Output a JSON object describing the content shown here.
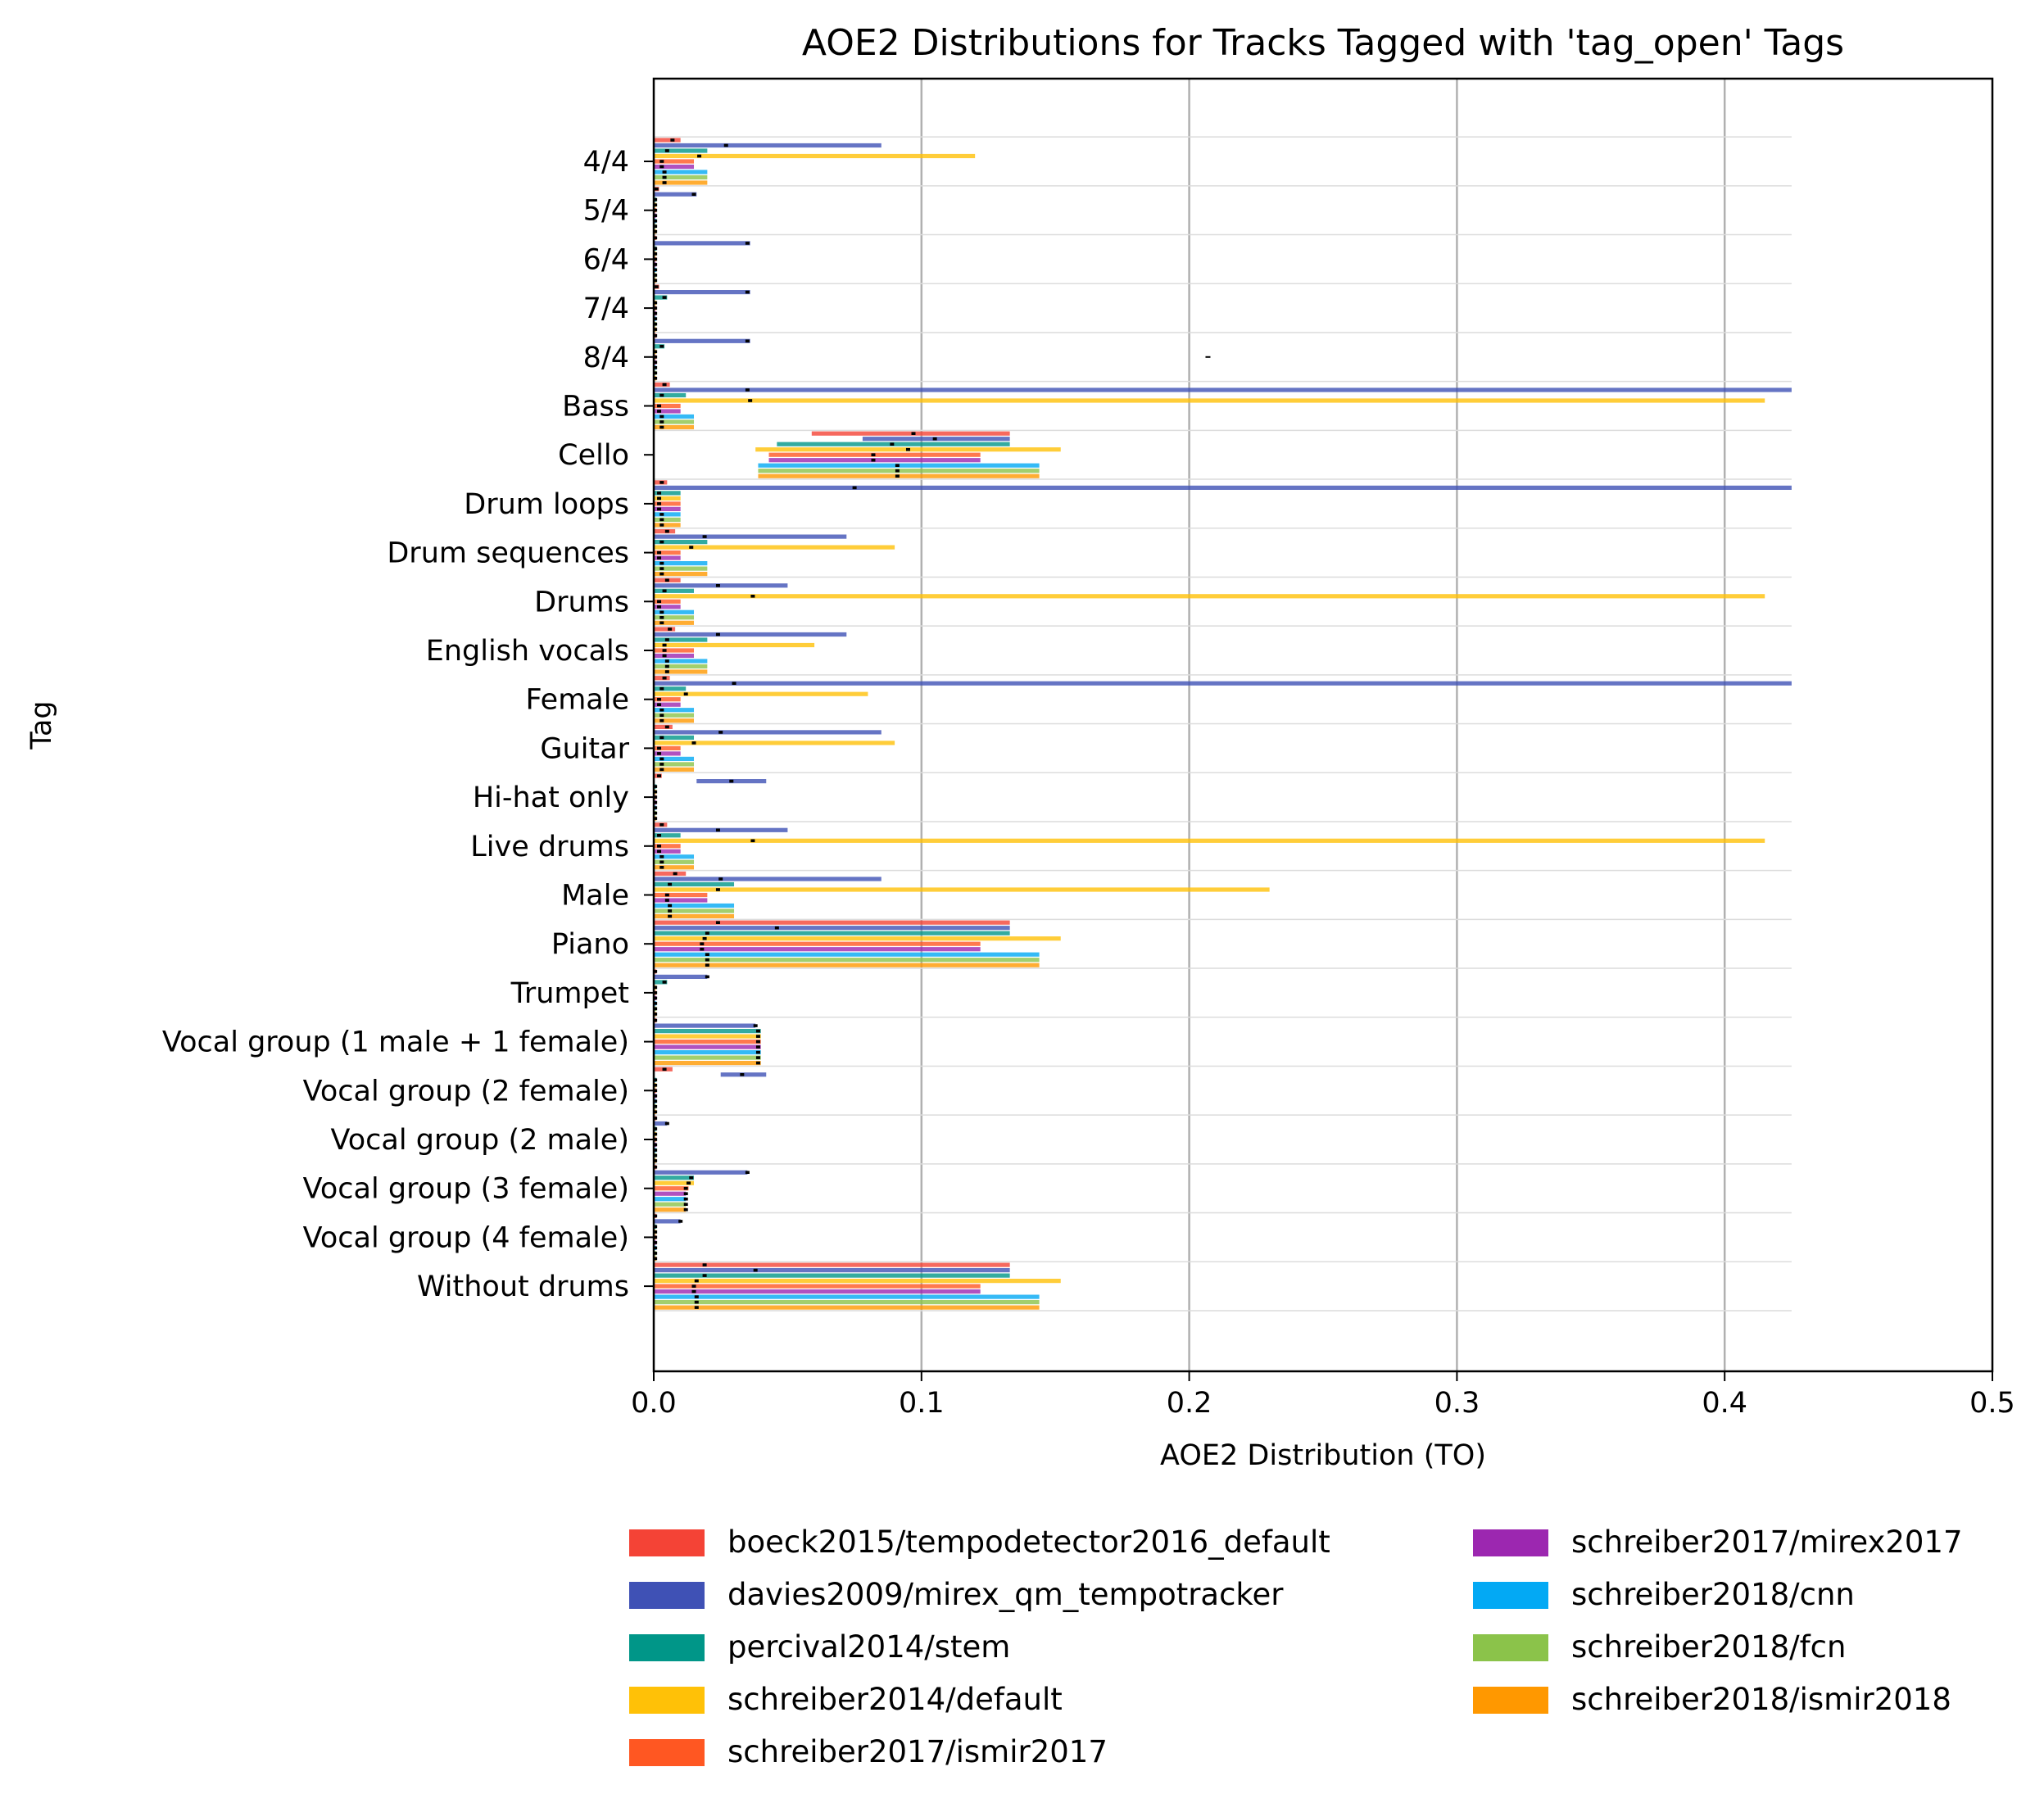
{
  "chart_data": {
    "type": "violin",
    "orientation": "horizontal",
    "title": "AOE2 Distributions for Tracks Tagged with 'tag_open' Tags",
    "xlabel": "AOE2 Distribution (TO)",
    "ylabel": "Tag",
    "xlim": [
      0.0,
      0.5
    ],
    "xticks": [
      "0.0",
      "0.1",
      "0.2",
      "0.3",
      "0.4",
      "0.5"
    ],
    "grid": "vertical",
    "legend_position": "bottom",
    "categories": [
      "4/4",
      "5/4",
      "6/4",
      "7/4",
      "8/4",
      "Bass",
      "Cello",
      "Drum loops",
      "Drum sequences",
      "Drums",
      "English vocals",
      "Female",
      "Guitar",
      "Hi-hat only",
      "Live drums",
      "Male",
      "Piano",
      "Trumpet",
      "Vocal group (1 male + 1 female)",
      "Vocal group (2 female)",
      "Vocal group (2 male)",
      "Vocal group (3 female)",
      "Vocal group (4 female)",
      "Without drums"
    ],
    "series": [
      {
        "name": "boeck2015/tempodetector2016_default",
        "color": "#f44336",
        "min": [
          0,
          0,
          0,
          0,
          0,
          0,
          0.059,
          0,
          0,
          0,
          0,
          0,
          0,
          0,
          0,
          0,
          0,
          0,
          0,
          0,
          0,
          0,
          0,
          0
        ],
        "max": [
          0.01,
          0.002,
          0.001,
          0.002,
          0.001,
          0.006,
          0.133,
          0.005,
          0.008,
          0.01,
          0.008,
          0.006,
          0.007,
          0.003,
          0.005,
          0.012,
          0.133,
          0.001,
          0.001,
          0.007,
          0.001,
          0.001,
          0.001,
          0.133
        ],
        "median": [
          0.007,
          0.001,
          0.0005,
          0.001,
          0.0005,
          0.004,
          0.097,
          0.003,
          0.005,
          0.005,
          0.006,
          0.004,
          0.005,
          0.002,
          0.003,
          0.008,
          0.024,
          0.0005,
          0.0005,
          0.004,
          0.0005,
          0.0005,
          0.0005,
          0.019
        ]
      },
      {
        "name": "davies2009/mirex_qm_tempotracker",
        "color": "#3f51b5",
        "min": [
          0,
          0,
          0,
          0,
          0,
          0,
          0.078,
          0,
          0,
          0,
          0,
          0,
          0,
          0.016,
          0,
          0,
          0,
          0,
          0,
          0.025,
          0,
          0,
          0,
          0
        ],
        "max": [
          0.085,
          0.016,
          0.036,
          0.036,
          0.036,
          0.425,
          0.133,
          0.425,
          0.072,
          0.05,
          0.072,
          0.425,
          0.085,
          0.042,
          0.05,
          0.085,
          0.133,
          0.02,
          0.038,
          0.042,
          0.005,
          0.035,
          0.01,
          0.133
        ],
        "median": [
          0.027,
          0.015,
          0.035,
          0.035,
          0.035,
          0.035,
          0.105,
          0.075,
          0.019,
          0.024,
          0.024,
          0.03,
          0.025,
          0.029,
          0.024,
          0.025,
          0.046,
          0.02,
          0.038,
          0.033,
          0.005,
          0.035,
          0.01,
          0.038
        ]
      },
      {
        "name": "percival2014/stem",
        "color": "#009688",
        "min": [
          0,
          0,
          0,
          0,
          0,
          0,
          0.046,
          0,
          0,
          0,
          0,
          0,
          0,
          0,
          0,
          0,
          0,
          0,
          0,
          0,
          0,
          0,
          0,
          0
        ],
        "max": [
          0.02,
          0.001,
          0.001,
          0.005,
          0.004,
          0.012,
          0.133,
          0.01,
          0.02,
          0.015,
          0.02,
          0.012,
          0.015,
          0.001,
          0.01,
          0.03,
          0.133,
          0.005,
          0.04,
          0.001,
          0.001,
          0.015,
          0.001,
          0.133
        ],
        "median": [
          0.005,
          0.0005,
          0.0005,
          0.004,
          0.003,
          0.003,
          0.089,
          0.002,
          0.003,
          0.004,
          0.005,
          0.003,
          0.003,
          0.0005,
          0.002,
          0.006,
          0.02,
          0.004,
          0.039,
          0.0005,
          0.0005,
          0.014,
          0.0005,
          0.019
        ]
      },
      {
        "name": "schreiber2014/default",
        "color": "#ffc107",
        "min": [
          0,
          0,
          0,
          0,
          0,
          0,
          0.038,
          0,
          0,
          0,
          0,
          0,
          0,
          0,
          0,
          0,
          0,
          0,
          0,
          0,
          0,
          0,
          0,
          0
        ],
        "max": [
          0.12,
          0.001,
          0.001,
          0.001,
          0.001,
          0.415,
          0.152,
          0.01,
          0.09,
          0.415,
          0.06,
          0.08,
          0.09,
          0.001,
          0.415,
          0.23,
          0.152,
          0.001,
          0.04,
          0.001,
          0.001,
          0.015,
          0.001,
          0.152
        ],
        "median": [
          0.017,
          0.0005,
          0.0005,
          0.0005,
          0.0005,
          0.036,
          0.095,
          0.002,
          0.014,
          0.037,
          0.004,
          0.012,
          0.015,
          0.0005,
          0.037,
          0.024,
          0.019,
          0.0005,
          0.039,
          0.0005,
          0.0005,
          0.013,
          0.0005,
          0.016
        ]
      },
      {
        "name": "schreiber2017/ismir2017",
        "color": "#ff5722",
        "min": [
          0,
          0,
          0,
          0,
          0,
          0,
          0.043,
          0,
          0,
          0,
          0,
          0,
          0,
          0,
          0,
          0,
          0,
          0,
          0,
          0,
          0,
          0,
          0,
          0
        ],
        "max": [
          0.015,
          0.001,
          0.001,
          0.001,
          0.001,
          0.01,
          0.122,
          0.01,
          0.01,
          0.01,
          0.015,
          0.01,
          0.01,
          0.001,
          0.01,
          0.02,
          0.122,
          0.001,
          0.04,
          0.001,
          0.001,
          0.013,
          0.001,
          0.122
        ],
        "median": [
          0.003,
          0.0005,
          0.0005,
          0.0005,
          0.0005,
          0.002,
          0.082,
          0.002,
          0.002,
          0.002,
          0.004,
          0.002,
          0.002,
          0.0005,
          0.002,
          0.005,
          0.018,
          0.0005,
          0.039,
          0.0005,
          0.0005,
          0.012,
          0.0005,
          0.015
        ]
      },
      {
        "name": "schreiber2017/mirex2017",
        "color": "#9c27b0",
        "min": [
          0,
          0,
          0,
          0,
          0,
          0,
          0.043,
          0,
          0,
          0,
          0,
          0,
          0,
          0,
          0,
          0,
          0,
          0,
          0,
          0,
          0,
          0,
          0,
          0
        ],
        "max": [
          0.015,
          0.001,
          0.001,
          0.001,
          0.001,
          0.01,
          0.122,
          0.01,
          0.01,
          0.01,
          0.015,
          0.01,
          0.01,
          0.001,
          0.01,
          0.02,
          0.122,
          0.001,
          0.04,
          0.001,
          0.001,
          0.012,
          0.001,
          0.122
        ],
        "median": [
          0.003,
          0.0005,
          0.0005,
          0.0005,
          0.0005,
          0.002,
          0.082,
          0.002,
          0.002,
          0.002,
          0.004,
          0.002,
          0.002,
          0.0005,
          0.002,
          0.005,
          0.018,
          0.0005,
          0.039,
          0.0005,
          0.0005,
          0.012,
          0.0005,
          0.015
        ]
      },
      {
        "name": "schreiber2018/cnn",
        "color": "#03a9f4",
        "min": [
          0,
          0,
          0,
          0,
          0,
          0,
          0.039,
          0,
          0,
          0,
          0,
          0,
          0,
          0,
          0,
          0,
          0,
          0,
          0,
          0,
          0,
          0,
          0,
          0
        ],
        "max": [
          0.02,
          0.001,
          0.001,
          0.001,
          0.001,
          0.015,
          0.144,
          0.01,
          0.02,
          0.015,
          0.02,
          0.015,
          0.015,
          0.001,
          0.015,
          0.03,
          0.144,
          0.001,
          0.04,
          0.001,
          0.001,
          0.012,
          0.001,
          0.144
        ],
        "median": [
          0.004,
          0.0005,
          0.0005,
          0.0005,
          0.0005,
          0.003,
          0.091,
          0.003,
          0.003,
          0.003,
          0.005,
          0.003,
          0.003,
          0.0005,
          0.003,
          0.006,
          0.02,
          0.0005,
          0.039,
          0.0005,
          0.0005,
          0.012,
          0.0005,
          0.016
        ]
      },
      {
        "name": "schreiber2018/fcn",
        "color": "#8bc34a",
        "min": [
          0,
          0,
          0,
          0,
          0,
          0,
          0.039,
          0,
          0,
          0,
          0,
          0,
          0,
          0,
          0,
          0,
          0,
          0,
          0,
          0,
          0,
          0,
          0,
          0
        ],
        "max": [
          0.02,
          0.001,
          0.001,
          0.001,
          0.001,
          0.015,
          0.144,
          0.01,
          0.02,
          0.015,
          0.02,
          0.015,
          0.015,
          0.001,
          0.015,
          0.03,
          0.144,
          0.001,
          0.04,
          0.001,
          0.001,
          0.012,
          0.001,
          0.144
        ],
        "median": [
          0.004,
          0.0005,
          0.0005,
          0.0005,
          0.0005,
          0.003,
          0.091,
          0.003,
          0.003,
          0.003,
          0.005,
          0.003,
          0.003,
          0.0005,
          0.003,
          0.006,
          0.02,
          0.0005,
          0.039,
          0.0005,
          0.0005,
          0.012,
          0.0005,
          0.016
        ]
      },
      {
        "name": "schreiber2018/ismir2018",
        "color": "#ff9800",
        "min": [
          0,
          0,
          0,
          0,
          0,
          0,
          0.039,
          0,
          0,
          0,
          0,
          0,
          0,
          0,
          0,
          0,
          0,
          0,
          0,
          0,
          0,
          0,
          0,
          0
        ],
        "max": [
          0.02,
          0.001,
          0.001,
          0.001,
          0.001,
          0.015,
          0.144,
          0.01,
          0.02,
          0.015,
          0.02,
          0.015,
          0.015,
          0.001,
          0.015,
          0.03,
          0.144,
          0.001,
          0.04,
          0.001,
          0.001,
          0.012,
          0.001,
          0.144
        ],
        "median": [
          0.004,
          0.0005,
          0.0005,
          0.0005,
          0.0005,
          0.003,
          0.091,
          0.003,
          0.003,
          0.003,
          0.005,
          0.003,
          0.003,
          0.0005,
          0.003,
          0.006,
          0.02,
          0.0005,
          0.039,
          0.0005,
          0.0005,
          0.012,
          0.0005,
          0.016
        ]
      }
    ],
    "outliers": [
      {
        "category": "8/4",
        "value": 0.207
      }
    ]
  }
}
